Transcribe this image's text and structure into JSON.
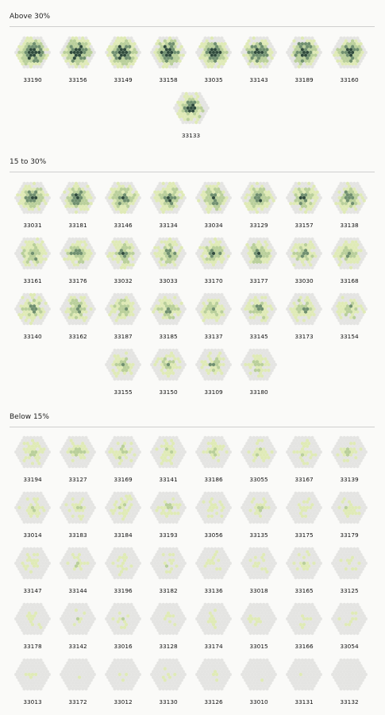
{
  "sections": [
    {
      "title": "Above 30%",
      "items": [
        {
          "code": "33190",
          "d": 0.95
        },
        {
          "code": "33156",
          "d": 0.92
        },
        {
          "code": "33149",
          "d": 0.9
        },
        {
          "code": "33158",
          "d": 0.88
        },
        {
          "code": "33035",
          "d": 0.85
        },
        {
          "code": "33143",
          "d": 0.82
        },
        {
          "code": "33189",
          "d": 0.8
        },
        {
          "code": "33160",
          "d": 0.78
        },
        {
          "code": "33133",
          "d": 0.75
        }
      ]
    },
    {
      "title": "15 to 30%",
      "items": [
        {
          "code": "33031",
          "d": 0.7
        },
        {
          "code": "33181",
          "d": 0.7
        },
        {
          "code": "33146",
          "d": 0.68
        },
        {
          "code": "33134",
          "d": 0.66
        },
        {
          "code": "33034",
          "d": 0.66
        },
        {
          "code": "33129",
          "d": 0.64
        },
        {
          "code": "33157",
          "d": 0.64
        },
        {
          "code": "33138",
          "d": 0.62
        },
        {
          "code": "33161",
          "d": 0.6
        },
        {
          "code": "33176",
          "d": 0.6
        },
        {
          "code": "33032",
          "d": 0.6
        },
        {
          "code": "33033",
          "d": 0.58
        },
        {
          "code": "33170",
          "d": 0.58
        },
        {
          "code": "33177",
          "d": 0.57
        },
        {
          "code": "33030",
          "d": 0.56
        },
        {
          "code": "33168",
          "d": 0.55
        },
        {
          "code": "33140",
          "d": 0.54
        },
        {
          "code": "33162",
          "d": 0.53
        },
        {
          "code": "33187",
          "d": 0.52
        },
        {
          "code": "33185",
          "d": 0.52
        },
        {
          "code": "33137",
          "d": 0.5
        },
        {
          "code": "33145",
          "d": 0.5
        },
        {
          "code": "33173",
          "d": 0.49
        },
        {
          "code": "33154",
          "d": 0.48
        },
        {
          "code": "33155",
          "d": 0.47
        },
        {
          "code": "33150",
          "d": 0.46
        },
        {
          "code": "33109",
          "d": 0.45
        },
        {
          "code": "33180",
          "d": 0.44
        }
      ]
    },
    {
      "title": "Below 15%",
      "items": [
        {
          "code": "33194",
          "d": 0.42
        },
        {
          "code": "33127",
          "d": 0.4
        },
        {
          "code": "33169",
          "d": 0.4
        },
        {
          "code": "33141",
          "d": 0.38
        },
        {
          "code": "33186",
          "d": 0.38
        },
        {
          "code": "33055",
          "d": 0.37
        },
        {
          "code": "33167",
          "d": 0.36
        },
        {
          "code": "33139",
          "d": 0.36
        },
        {
          "code": "33014",
          "d": 0.35
        },
        {
          "code": "33183",
          "d": 0.34
        },
        {
          "code": "33184",
          "d": 0.34
        },
        {
          "code": "33193",
          "d": 0.33
        },
        {
          "code": "33056",
          "d": 0.33
        },
        {
          "code": "33135",
          "d": 0.32
        },
        {
          "code": "33175",
          "d": 0.3
        },
        {
          "code": "33179",
          "d": 0.3
        },
        {
          "code": "33147",
          "d": 0.3
        },
        {
          "code": "33144",
          "d": 0.29
        },
        {
          "code": "33196",
          "d": 0.28
        },
        {
          "code": "33182",
          "d": 0.28
        },
        {
          "code": "33136",
          "d": 0.27
        },
        {
          "code": "33018",
          "d": 0.27
        },
        {
          "code": "33165",
          "d": 0.26
        },
        {
          "code": "33125",
          "d": 0.26
        },
        {
          "code": "33178",
          "d": 0.25
        },
        {
          "code": "33142",
          "d": 0.24
        },
        {
          "code": "33016",
          "d": 0.24
        },
        {
          "code": "33128",
          "d": 0.23
        },
        {
          "code": "33174",
          "d": 0.22
        },
        {
          "code": "33015",
          "d": 0.22
        },
        {
          "code": "33166",
          "d": 0.21
        },
        {
          "code": "33054",
          "d": 0.2
        },
        {
          "code": "33013",
          "d": 0.2
        },
        {
          "code": "33172",
          "d": 0.19
        },
        {
          "code": "33012",
          "d": 0.18
        },
        {
          "code": "33130",
          "d": 0.18
        },
        {
          "code": "33126",
          "d": 0.17
        },
        {
          "code": "33010",
          "d": 0.16
        },
        {
          "code": "33131",
          "d": 0.15
        },
        {
          "code": "33132",
          "d": 0.15
        }
      ]
    }
  ],
  "colors": {
    "background": "#fafaf8",
    "hex_empty": "#e4e4e2",
    "hex_light": "#dfeab6",
    "hex_mid": "#b9cf9a",
    "hex_dark": "#6f8f6e",
    "hex_darkest": "#2f4a3c",
    "rule": "#cfcfcf"
  }
}
